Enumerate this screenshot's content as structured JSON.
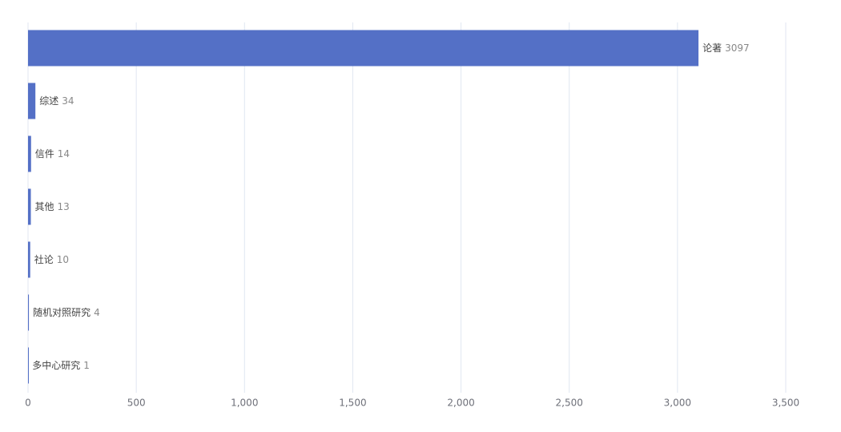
{
  "chart_data": {
    "type": "bar",
    "orientation": "horizontal",
    "categories": [
      "论著",
      "综述",
      "信件",
      "其他",
      "社论",
      "随机对照研究",
      "多中心研究"
    ],
    "values": [
      3097,
      34,
      14,
      13,
      10,
      4,
      1
    ],
    "color": "#5470c6",
    "xlim": [
      0,
      3500
    ],
    "xticks": [
      0,
      500,
      {
        "value": 1000,
        "label": "1,000"
      },
      {
        "value": 1500,
        "label": "1,500"
      },
      {
        "value": 2000,
        "label": "2,000"
      },
      {
        "value": 2500,
        "label": "2,500"
      },
      {
        "value": 3000,
        "label": "3,000"
      },
      {
        "value": 3500,
        "label": "3,500"
      }
    ],
    "grid": true
  }
}
